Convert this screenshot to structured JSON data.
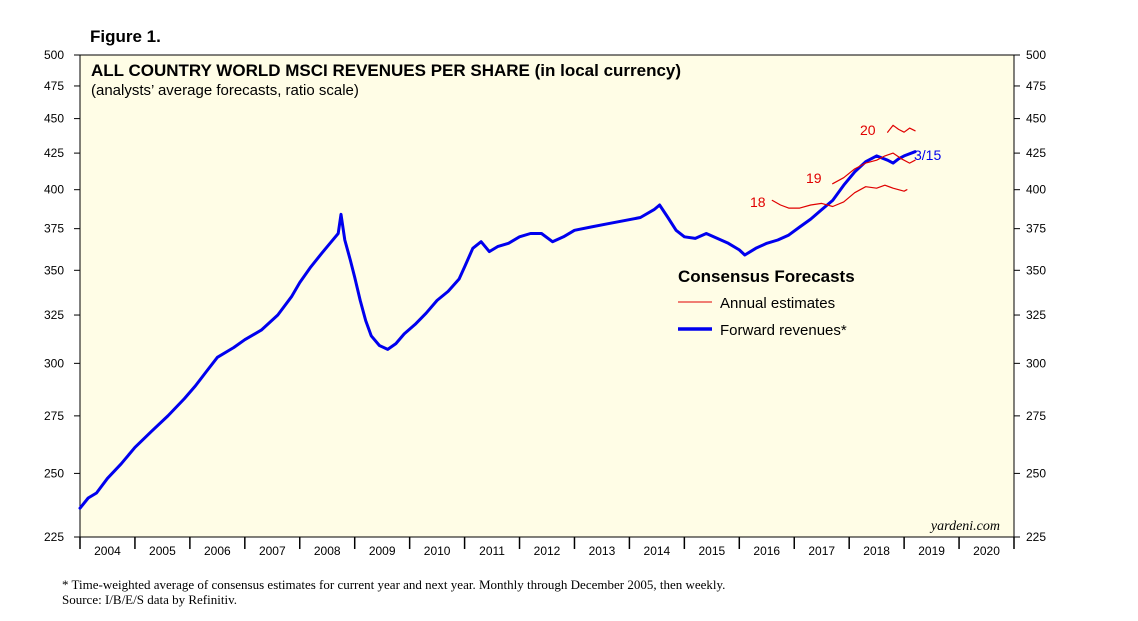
{
  "figure_label": "Figure 1.",
  "footnotes": {
    "note": "*  Time-weighted average of consensus estimates for current year and next year. Monthly through December 2005, then weekly.",
    "source": "Source: I/B/E/S data by Refinitiv."
  },
  "colors": {
    "plot_bg": "#fffde6",
    "forward": "#0000ee",
    "annual": "#e00000"
  },
  "chart_data": {
    "type": "line",
    "title": "ALL COUNTRY WORLD MSCI REVENUES PER SHARE (in local currency)",
    "subtitle": "(analysts’ average forecasts, ratio scale)",
    "credit": "yardeni.com",
    "y_scale": "log",
    "ylim": [
      225,
      500
    ],
    "y_ticks": [
      225,
      250,
      275,
      300,
      325,
      350,
      375,
      400,
      425,
      450,
      475,
      500
    ],
    "y_tick_labels": [
      "225",
      "250",
      "275",
      "300",
      "325",
      "350",
      "375",
      "400",
      "425",
      "450",
      "475",
      "500"
    ],
    "xlim": [
      2004.0,
      2021.0
    ],
    "x_tick_labels": [
      "2004",
      "2005",
      "2006",
      "2007",
      "2008",
      "2009",
      "2010",
      "2011",
      "2012",
      "2013",
      "2014",
      "2015",
      "2016",
      "2017",
      "2018",
      "2019",
      "2020"
    ],
    "legend": {
      "title": "Consensus Forecasts",
      "placement": "center-right",
      "entries": [
        "Annual estimates",
        "Forward revenues*"
      ]
    },
    "annotations": {
      "label_18": "18",
      "label_19": "19",
      "label_20": "20",
      "last_date": "3/15"
    },
    "grid": false,
    "series": [
      {
        "name": "Forward revenues*",
        "color": "#0000ee",
        "points": [
          [
            2004.0,
            236
          ],
          [
            2004.15,
            240
          ],
          [
            2004.3,
            242
          ],
          [
            2004.5,
            248
          ],
          [
            2004.75,
            254
          ],
          [
            2005.0,
            261
          ],
          [
            2005.3,
            268
          ],
          [
            2005.6,
            275
          ],
          [
            2005.9,
            283
          ],
          [
            2006.1,
            289
          ],
          [
            2006.3,
            296
          ],
          [
            2006.5,
            303
          ],
          [
            2006.8,
            308
          ],
          [
            2007.0,
            312
          ],
          [
            2007.3,
            317
          ],
          [
            2007.6,
            325
          ],
          [
            2007.85,
            335
          ],
          [
            2008.0,
            343
          ],
          [
            2008.2,
            352
          ],
          [
            2008.4,
            360
          ],
          [
            2008.55,
            366
          ],
          [
            2008.7,
            372
          ],
          [
            2008.75,
            384
          ],
          [
            2008.82,
            368
          ],
          [
            2008.92,
            356
          ],
          [
            2009.0,
            346
          ],
          [
            2009.1,
            333
          ],
          [
            2009.2,
            322
          ],
          [
            2009.3,
            314
          ],
          [
            2009.45,
            309
          ],
          [
            2009.6,
            307
          ],
          [
            2009.75,
            310
          ],
          [
            2009.9,
            315
          ],
          [
            2010.1,
            320
          ],
          [
            2010.3,
            326
          ],
          [
            2010.5,
            333
          ],
          [
            2010.7,
            338
          ],
          [
            2010.9,
            345
          ],
          [
            2011.0,
            352
          ],
          [
            2011.15,
            363
          ],
          [
            2011.3,
            367
          ],
          [
            2011.45,
            361
          ],
          [
            2011.6,
            364
          ],
          [
            2011.8,
            366
          ],
          [
            2012.0,
            370
          ],
          [
            2012.2,
            372
          ],
          [
            2012.4,
            372
          ],
          [
            2012.6,
            367
          ],
          [
            2012.8,
            370
          ],
          [
            2013.0,
            374
          ],
          [
            2013.3,
            376
          ],
          [
            2013.6,
            378
          ],
          [
            2013.9,
            380
          ],
          [
            2014.2,
            382
          ],
          [
            2014.45,
            387
          ],
          [
            2014.55,
            390
          ],
          [
            2014.7,
            382
          ],
          [
            2014.85,
            374
          ],
          [
            2015.0,
            370
          ],
          [
            2015.2,
            369
          ],
          [
            2015.4,
            372
          ],
          [
            2015.6,
            369
          ],
          [
            2015.8,
            366
          ],
          [
            2016.0,
            362
          ],
          [
            2016.1,
            359
          ],
          [
            2016.3,
            363
          ],
          [
            2016.5,
            366
          ],
          [
            2016.7,
            368
          ],
          [
            2016.9,
            371
          ],
          [
            2017.1,
            376
          ],
          [
            2017.3,
            381
          ],
          [
            2017.5,
            387
          ],
          [
            2017.7,
            393
          ],
          [
            2017.9,
            403
          ],
          [
            2018.1,
            412
          ],
          [
            2018.3,
            419
          ],
          [
            2018.5,
            423
          ],
          [
            2018.7,
            420
          ],
          [
            2018.8,
            418
          ],
          [
            2018.9,
            421
          ],
          [
            2019.0,
            423
          ],
          [
            2019.2,
            426
          ]
        ]
      },
      {
        "name": "Annual estimates 2018",
        "color": "#e00000",
        "points": [
          [
            2016.6,
            393
          ],
          [
            2016.75,
            390
          ],
          [
            2016.9,
            388
          ],
          [
            2017.1,
            388
          ],
          [
            2017.3,
            390
          ],
          [
            2017.5,
            391
          ],
          [
            2017.7,
            389
          ],
          [
            2017.9,
            392
          ],
          [
            2018.1,
            398
          ],
          [
            2018.3,
            402
          ],
          [
            2018.5,
            401
          ],
          [
            2018.65,
            403
          ],
          [
            2018.8,
            401
          ],
          [
            2018.9,
            400
          ],
          [
            2019.0,
            399
          ],
          [
            2019.05,
            400
          ]
        ]
      },
      {
        "name": "Annual estimates 2019",
        "color": "#e00000",
        "points": [
          [
            2017.7,
            404
          ],
          [
            2017.9,
            408
          ],
          [
            2018.1,
            414
          ],
          [
            2018.3,
            418
          ],
          [
            2018.5,
            420
          ],
          [
            2018.65,
            423
          ],
          [
            2018.8,
            425
          ],
          [
            2018.95,
            421
          ],
          [
            2019.1,
            418
          ],
          [
            2019.2,
            420
          ]
        ]
      },
      {
        "name": "Annual estimates 2020",
        "color": "#e00000",
        "points": [
          [
            2018.7,
            440
          ],
          [
            2018.8,
            445
          ],
          [
            2018.9,
            442
          ],
          [
            2019.0,
            440
          ],
          [
            2019.1,
            443
          ],
          [
            2019.2,
            441
          ]
        ]
      }
    ]
  }
}
